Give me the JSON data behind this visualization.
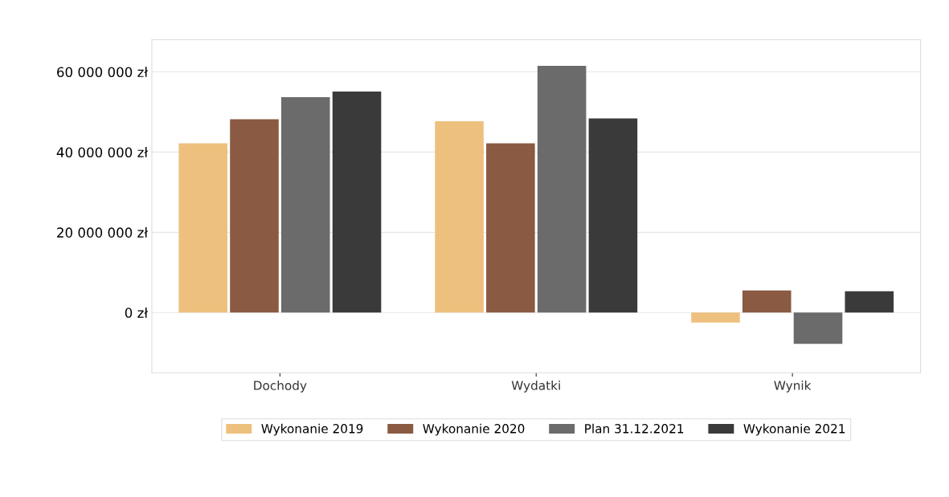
{
  "chart_data": {
    "type": "bar",
    "categories": [
      "Dochody",
      "Wydatki",
      "Wynik"
    ],
    "series": [
      {
        "name": "Wykonanie 2019",
        "color": "#eec07e",
        "values": [
          42200000,
          47700000,
          -2500000
        ]
      },
      {
        "name": "Wykonanie 2020",
        "color": "#8a5a42",
        "values": [
          48200000,
          42200000,
          5500000
        ]
      },
      {
        "name": "Plan 31.12.2021",
        "color": "#6b6b6b",
        "values": [
          53700000,
          61500000,
          -7800000
        ]
      },
      {
        "name": "Wykonanie 2021",
        "color": "#3a3a3a",
        "values": [
          55100000,
          48400000,
          5300000
        ]
      }
    ],
    "ylim": [
      -15000000,
      68000000
    ],
    "yticks": [
      {
        "value": 0,
        "label": "0 zł"
      },
      {
        "value": 20000000,
        "label": "20 000 000 zł"
      },
      {
        "value": 40000000,
        "label": "40 000 000 zł"
      },
      {
        "value": 60000000,
        "label": "60 000 000 zł"
      }
    ],
    "grid": "y",
    "legend": "bottom"
  }
}
